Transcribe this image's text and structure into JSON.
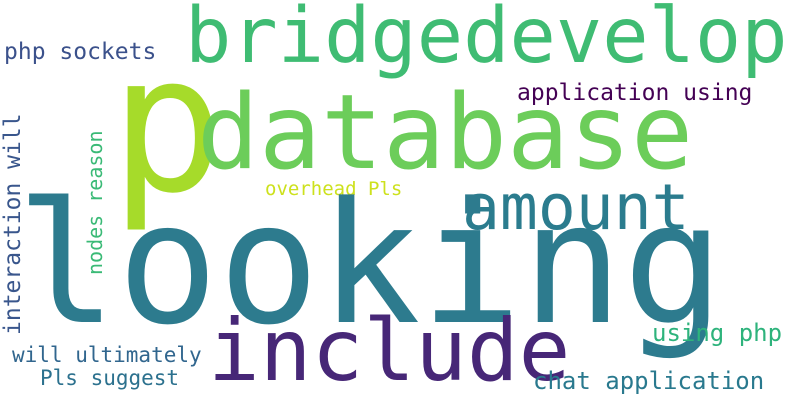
{
  "words": [
    {
      "id": "p",
      "text": "p",
      "color": "#a6db2a"
    },
    {
      "id": "bridgedevelop",
      "text": "bridgedevelop",
      "color": "#3fbc73"
    },
    {
      "id": "database",
      "text": "database",
      "color": "#6ccd5a"
    },
    {
      "id": "looking",
      "text": "looking",
      "color": "#2d7b8e"
    },
    {
      "id": "include",
      "text": "include",
      "color": "#472777"
    },
    {
      "id": "amount",
      "text": "amount",
      "color": "#2b7c8e"
    },
    {
      "id": "application-using",
      "text": "application using",
      "color": "#440154"
    },
    {
      "id": "php-sockets",
      "text": "php sockets",
      "color": "#3b518b"
    },
    {
      "id": "overhead-pls",
      "text": "overhead Pls",
      "color": "#cde11d"
    },
    {
      "id": "interaction-will",
      "text": "interaction will",
      "color": "#39568c"
    },
    {
      "id": "nodes-reason",
      "text": "nodes reason",
      "color": "#3aba76"
    },
    {
      "id": "using-php",
      "text": "using php",
      "color": "#2eb37c"
    },
    {
      "id": "will-ultimately",
      "text": "will ultimately",
      "color": "#31668e"
    },
    {
      "id": "pls-suggest",
      "text": "Pls suggest",
      "color": "#2c718e"
    },
    {
      "id": "chat-application",
      "text": "chat application",
      "color": "#29798e"
    }
  ]
}
